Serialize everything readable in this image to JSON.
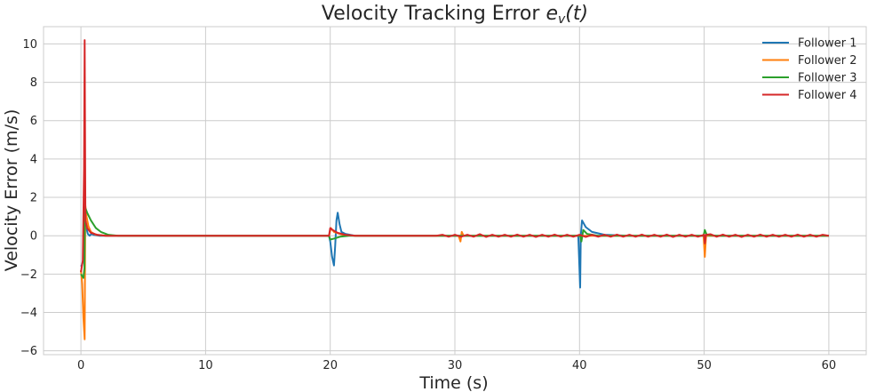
{
  "chart_data": {
    "type": "line",
    "title_main": "Velocity Tracking Error",
    "title_math": "e",
    "title_math_sub": "v",
    "title_math_arg": "(t)",
    "xlabel": "Time (s)",
    "ylabel": "Velocity Error (m/s)",
    "xlim": [
      -3,
      63
    ],
    "ylim": [
      -6.2,
      10.9
    ],
    "xticks": [
      0,
      10,
      20,
      30,
      40,
      50,
      60
    ],
    "yticks": [
      -6,
      -4,
      -2,
      0,
      2,
      4,
      6,
      8,
      10
    ],
    "xtick_labels": [
      "0",
      "10",
      "20",
      "30",
      "40",
      "50",
      "60"
    ],
    "ytick_labels": [
      "−6",
      "−4",
      "−2",
      "0",
      "2",
      "4",
      "6",
      "8",
      "10"
    ],
    "grid": true,
    "legend_position": "top-right",
    "series": [
      {
        "name": "Follower 1",
        "color": "#1f77b4",
        "points": [
          [
            0,
            -1.6
          ],
          [
            0.1,
            -1.5
          ],
          [
            0.2,
            -1.2
          ],
          [
            0.3,
            1.2
          ],
          [
            0.4,
            0.5
          ],
          [
            0.55,
            0.1
          ],
          [
            0.7,
            0.0
          ],
          [
            0.85,
            0.1
          ],
          [
            1.0,
            0.05
          ],
          [
            1.5,
            0.0
          ],
          [
            3,
            0.0
          ],
          [
            19.9,
            0.0
          ],
          [
            20.0,
            -0.3
          ],
          [
            20.15,
            -1.1
          ],
          [
            20.3,
            -1.55
          ],
          [
            20.4,
            -0.5
          ],
          [
            20.5,
            0.8
          ],
          [
            20.6,
            1.2
          ],
          [
            20.75,
            0.6
          ],
          [
            20.9,
            0.2
          ],
          [
            21.2,
            0.1
          ],
          [
            22,
            0.0
          ],
          [
            39.9,
            0.0
          ],
          [
            40.05,
            -2.7
          ],
          [
            40.1,
            0.0
          ],
          [
            40.2,
            0.8
          ],
          [
            40.5,
            0.45
          ],
          [
            41,
            0.2
          ],
          [
            42,
            0.05
          ],
          [
            44,
            0.0
          ],
          [
            60,
            0.0
          ]
        ]
      },
      {
        "name": "Follower 2",
        "color": "#ff7f0e",
        "points": [
          [
            0,
            -1.8
          ],
          [
            0.1,
            -2.5
          ],
          [
            0.2,
            -4.3
          ],
          [
            0.3,
            -5.4
          ],
          [
            0.35,
            1.6
          ],
          [
            0.45,
            1.0
          ],
          [
            0.6,
            0.5
          ],
          [
            0.8,
            0.2
          ],
          [
            1.2,
            0.05
          ],
          [
            2,
            0.0
          ],
          [
            19.9,
            0.0
          ],
          [
            20.05,
            0.4
          ],
          [
            20.3,
            0.2
          ],
          [
            21,
            0.05
          ],
          [
            22,
            0.0
          ],
          [
            30.3,
            0.0
          ],
          [
            30.45,
            -0.3
          ],
          [
            30.55,
            0.2
          ],
          [
            30.7,
            0.0
          ],
          [
            49.95,
            0.0
          ],
          [
            50.05,
            -1.1
          ],
          [
            50.15,
            0.0
          ],
          [
            60,
            0.0
          ]
        ]
      },
      {
        "name": "Follower 3",
        "color": "#2ca02c",
        "points": [
          [
            0,
            -2.0
          ],
          [
            0.1,
            -2.1
          ],
          [
            0.2,
            -2.2
          ],
          [
            0.28,
            -1.7
          ],
          [
            0.33,
            1.5
          ],
          [
            0.5,
            1.2
          ],
          [
            0.8,
            0.8
          ],
          [
            1.2,
            0.4
          ],
          [
            1.6,
            0.2
          ],
          [
            2.2,
            0.05
          ],
          [
            3,
            0.0
          ],
          [
            19.9,
            0.0
          ],
          [
            20.0,
            -0.2
          ],
          [
            20.3,
            -0.15
          ],
          [
            20.8,
            -0.05
          ],
          [
            21.5,
            0.0
          ],
          [
            40.05,
            0.0
          ],
          [
            40.15,
            -0.3
          ],
          [
            40.3,
            0.3
          ],
          [
            40.6,
            0.1
          ],
          [
            41.5,
            0.0
          ],
          [
            49.95,
            0.0
          ],
          [
            50.05,
            0.3
          ],
          [
            50.2,
            0.05
          ],
          [
            51,
            0.0
          ],
          [
            60,
            0.0
          ]
        ]
      },
      {
        "name": "Follower 4",
        "color": "#d62728",
        "points": [
          [
            0,
            -1.9
          ],
          [
            0.15,
            -1.3
          ],
          [
            0.25,
            3.5
          ],
          [
            0.3,
            10.2
          ],
          [
            0.36,
            0.8
          ],
          [
            0.5,
            0.4
          ],
          [
            0.8,
            0.15
          ],
          [
            1.3,
            0.05
          ],
          [
            2,
            0.0
          ],
          [
            19.9,
            0.0
          ],
          [
            20.0,
            0.4
          ],
          [
            20.2,
            0.3
          ],
          [
            20.6,
            0.15
          ],
          [
            21.2,
            0.05
          ],
          [
            22,
            0.0
          ],
          [
            28.5,
            0.0
          ],
          [
            29,
            0.05
          ],
          [
            29.5,
            -0.05
          ],
          [
            30,
            0.05
          ],
          [
            30.5,
            -0.05
          ],
          [
            31,
            0.05
          ],
          [
            31.5,
            -0.05
          ],
          [
            32,
            0.08
          ],
          [
            32.5,
            -0.06
          ],
          [
            33,
            0.05
          ],
          [
            33.5,
            -0.05
          ],
          [
            34,
            0.05
          ],
          [
            34.5,
            -0.05
          ],
          [
            35,
            0.06
          ],
          [
            35.5,
            -0.05
          ],
          [
            36,
            0.05
          ],
          [
            36.5,
            -0.06
          ],
          [
            37,
            0.05
          ],
          [
            37.5,
            -0.05
          ],
          [
            38,
            0.06
          ],
          [
            38.5,
            -0.05
          ],
          [
            39,
            0.05
          ],
          [
            39.5,
            -0.05
          ],
          [
            40,
            0.05
          ],
          [
            40.5,
            -0.06
          ],
          [
            41,
            0.05
          ],
          [
            41.5,
            -0.05
          ],
          [
            42,
            0.05
          ],
          [
            42.5,
            -0.05
          ],
          [
            43,
            0.06
          ],
          [
            43.5,
            -0.05
          ],
          [
            44,
            0.05
          ],
          [
            44.5,
            -0.05
          ],
          [
            45,
            0.06
          ],
          [
            45.5,
            -0.05
          ],
          [
            46,
            0.05
          ],
          [
            46.5,
            -0.05
          ],
          [
            47,
            0.06
          ],
          [
            47.5,
            -0.06
          ],
          [
            48,
            0.05
          ],
          [
            48.5,
            -0.05
          ],
          [
            49,
            0.05
          ],
          [
            49.5,
            -0.05
          ],
          [
            50.0,
            0.05
          ],
          [
            50.05,
            -0.4
          ],
          [
            50.15,
            0.05
          ],
          [
            50.5,
            0.08
          ],
          [
            51,
            -0.05
          ],
          [
            51.5,
            0.06
          ],
          [
            52,
            -0.05
          ],
          [
            52.5,
            0.05
          ],
          [
            53,
            -0.06
          ],
          [
            53.5,
            0.05
          ],
          [
            54,
            -0.05
          ],
          [
            54.5,
            0.06
          ],
          [
            55,
            -0.05
          ],
          [
            55.5,
            0.05
          ],
          [
            56,
            -0.05
          ],
          [
            56.5,
            0.05
          ],
          [
            57,
            -0.05
          ],
          [
            57.5,
            0.06
          ],
          [
            58,
            -0.05
          ],
          [
            58.5,
            0.05
          ],
          [
            59,
            -0.05
          ],
          [
            59.5,
            0.05
          ],
          [
            60,
            0.0
          ]
        ]
      }
    ]
  }
}
